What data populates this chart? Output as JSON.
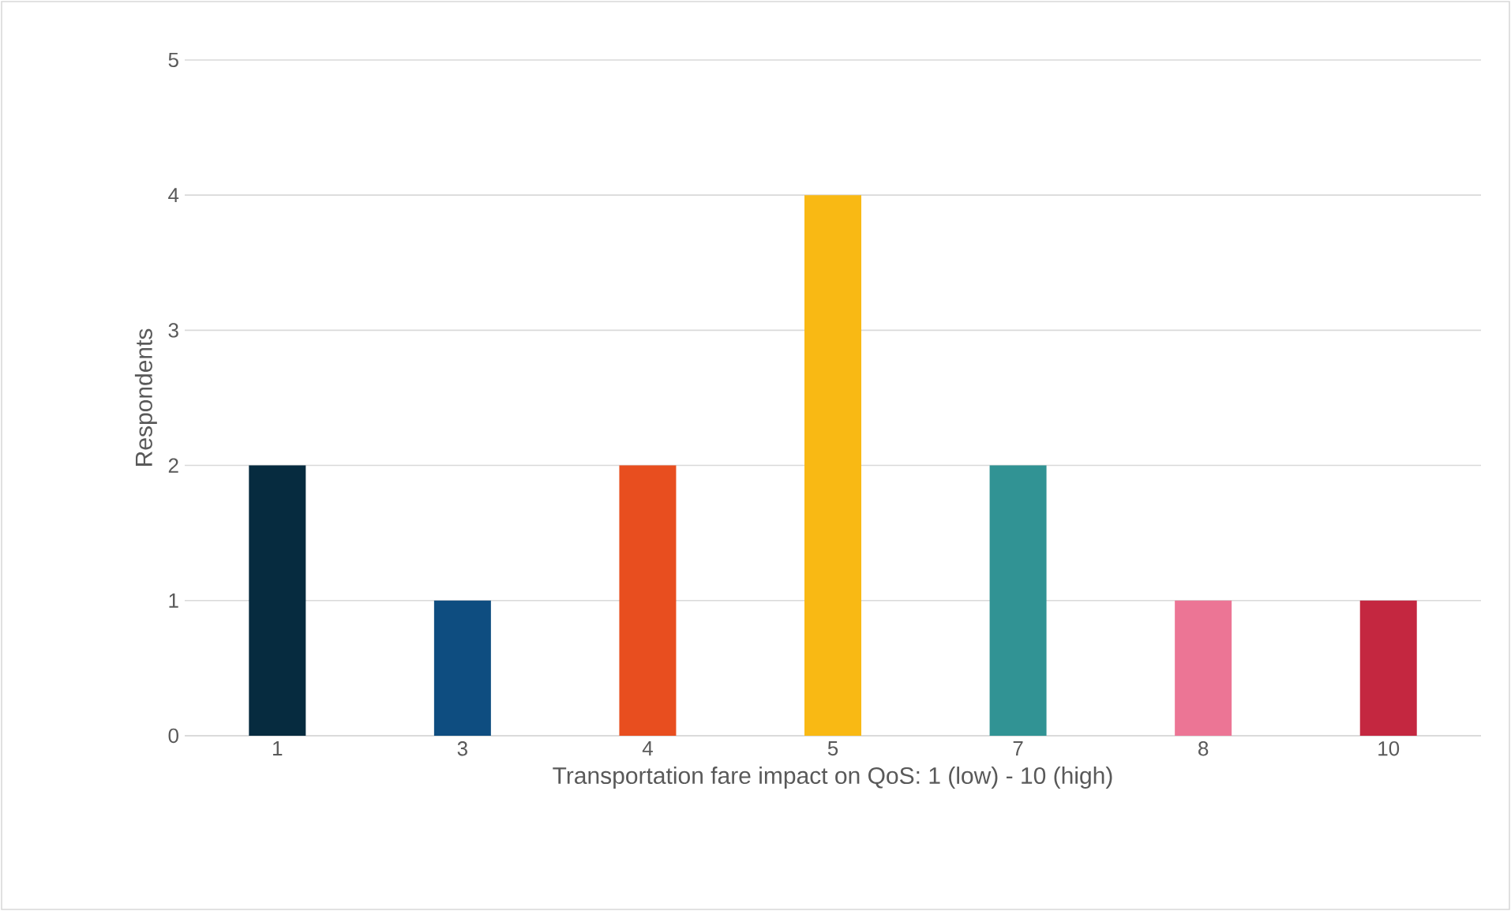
{
  "chart_data": {
    "type": "bar",
    "xlabel": "Transportation fare impact on QoS: 1 (low) - 10 (high)",
    "ylabel": "Respondents",
    "categories": [
      "1",
      "3",
      "4",
      "5",
      "7",
      "8",
      "10"
    ],
    "values": [
      2,
      1,
      2,
      4,
      2,
      1,
      1
    ],
    "colors": [
      "#062b3f",
      "#0e4d80",
      "#e84e1f",
      "#f9b914",
      "#319394",
      "#ec7595",
      "#c42740"
    ],
    "ylim": [
      0,
      5
    ],
    "yticks": [
      0,
      1,
      2,
      3,
      4,
      5
    ],
    "grid": "y"
  }
}
